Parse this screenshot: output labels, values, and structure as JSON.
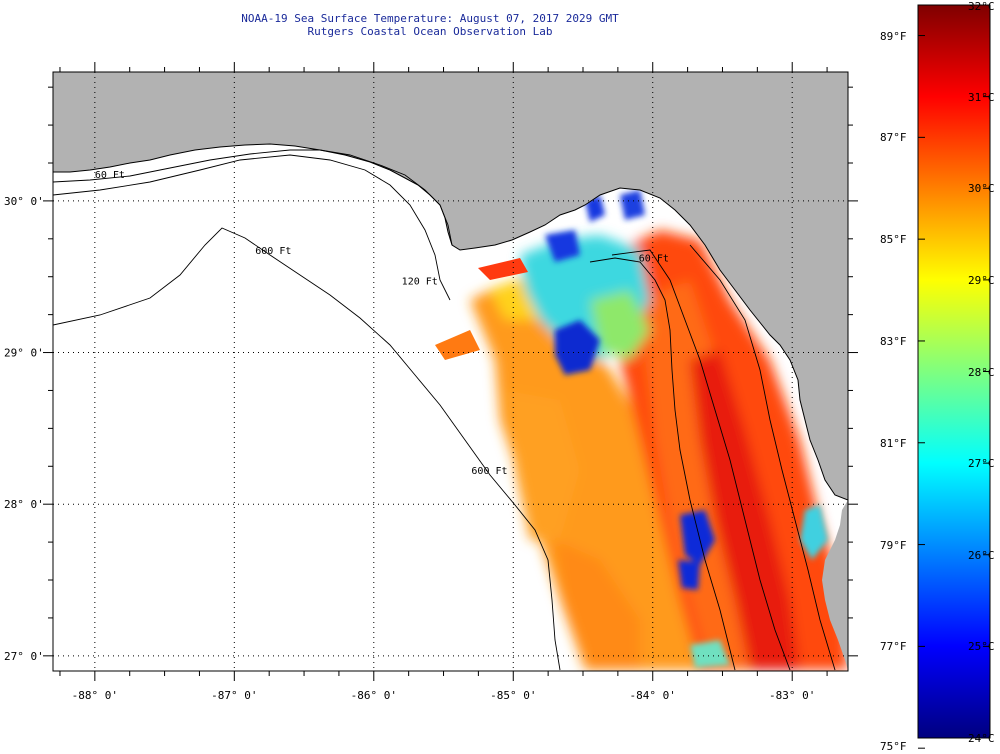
{
  "title": {
    "line1": "NOAA-19 Sea Surface Temperature:  August 07, 2017 2029 GMT",
    "line2": "Rutgers Coastal Ocean Observation Lab"
  },
  "map": {
    "lon_range": [
      -88.3,
      -82.6
    ],
    "lat_range": [
      26.9,
      30.85
    ],
    "lon_ticks": [
      {
        "value": -88,
        "label": "-88° 0'"
      },
      {
        "value": -87,
        "label": "-87° 0'"
      },
      {
        "value": -86,
        "label": "-86° 0'"
      },
      {
        "value": -85,
        "label": "-85° 0'"
      },
      {
        "value": -84,
        "label": "-84° 0'"
      },
      {
        "value": -83,
        "label": "-83° 0'"
      }
    ],
    "lat_ticks": [
      {
        "value": 30,
        "label": "30° 0'"
      },
      {
        "value": 29,
        "label": "29° 0'"
      },
      {
        "value": 28,
        "label": "28° 0'"
      },
      {
        "value": 27,
        "label": "27° 0'"
      }
    ],
    "isobath_labels": [
      {
        "text": "60 Ft",
        "lon": -88.0,
        "lat": 30.15
      },
      {
        "text": "600 Ft",
        "lon": -86.85,
        "lat": 29.65
      },
      {
        "text": "120 Ft",
        "lon": -85.8,
        "lat": 29.45
      },
      {
        "text": "600 Ft",
        "lon": -85.3,
        "lat": 28.2
      },
      {
        "text": "60 Ft",
        "lon": -84.1,
        "lat": 29.6
      }
    ],
    "land_color": "#b2b2b2",
    "nodata_color": "#ffffff"
  },
  "colorbar": {
    "min_c": 24,
    "max_c": 32,
    "celsius_labels": [
      "32°C",
      "31°C",
      "30°C",
      "29°C",
      "28°C",
      "27°C",
      "26°C",
      "25°C",
      "24°C"
    ],
    "celsius_values": [
      32,
      31,
      30,
      29,
      28,
      27,
      26,
      25,
      24
    ],
    "fahrenheit_labels": [
      "89°F",
      "87°F",
      "85°F",
      "83°F",
      "81°F",
      "79°F",
      "77°F",
      "75°F"
    ],
    "fahrenheit_values": [
      89,
      87,
      85,
      83,
      81,
      79,
      77,
      75
    ],
    "colors": [
      "#00007f",
      "#0000ff",
      "#007fff",
      "#00ffff",
      "#7fff7f",
      "#ffff00",
      "#ff7f00",
      "#ff0000",
      "#7f0000"
    ]
  }
}
